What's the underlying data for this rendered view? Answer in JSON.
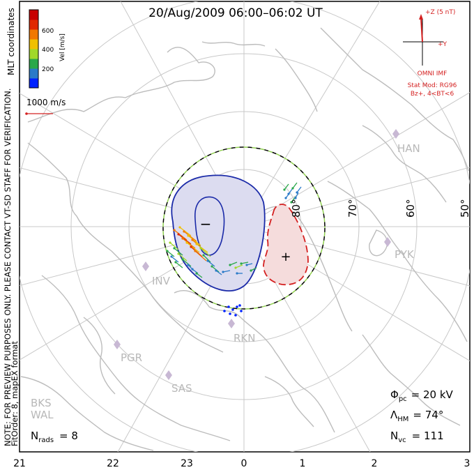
{
  "chart_data": {
    "type": "scatter",
    "title": "20/Aug/2009 06:00–06:02 UT",
    "coordinate_label": "MLT coordinates",
    "colorbar": {
      "label": "Vel [m/s]",
      "ticks": [
        "600",
        "400",
        "200"
      ],
      "colors": [
        "#0022ff",
        "#2a7ac8",
        "#2aa84a",
        "#a0d82a",
        "#f0c000",
        "#f07800",
        "#e02800",
        "#c80000"
      ]
    },
    "velocity_scale": {
      "label": "1000 m/s",
      "color": "#d42020"
    },
    "imf": {
      "z_label": "+Z (5 nT)",
      "y_label": "+Y",
      "source": "OMNI IMF",
      "model_line1": "Stat Mod: RG96",
      "model_line2": "Bz+, 4<BT<6",
      "color": "#d42020"
    },
    "mlt_ticks": [
      "21",
      "22",
      "23",
      "0",
      "1",
      "2",
      "3"
    ],
    "latitude_labels": [
      "80°",
      "70°",
      "60°",
      "50°"
    ],
    "stations": [
      "HAN",
      "PYK",
      "INV",
      "RKN",
      "PGR",
      "SAS",
      "BKS",
      "WAL"
    ],
    "convection_cells": [
      {
        "sign": "−",
        "fill": "#dcdcf0",
        "stroke": "#1a2aa8"
      },
      {
        "sign": "+",
        "fill": "#f5dcdc",
        "stroke": "#d42020"
      }
    ],
    "stats": {
      "phi_symbol": "Φ",
      "phi_sub": "pc",
      "phi_value": "= 20 kV",
      "lambda_symbol": "Λ",
      "lambda_sub": "HM",
      "lambda_value": "= 74°",
      "nvc_symbol": "N",
      "nvc_sub": "vc",
      "nvc_value": "= 111",
      "nrads_symbol": "N",
      "nrads_sub": "rads",
      "nrads_value": "= 8"
    },
    "side_note_line1": "NOTE: FOR PREVIEW PURPOSES ONLY. PLEASE CONTACT VT-SD STAFF FOR VERIFICATION.",
    "side_note_line2": "FitOrder: 8, mapEX format",
    "colors": {
      "grid": "#c8c8c8",
      "land": "#c0c0c0",
      "boundary_dash": "#90d050"
    }
  }
}
